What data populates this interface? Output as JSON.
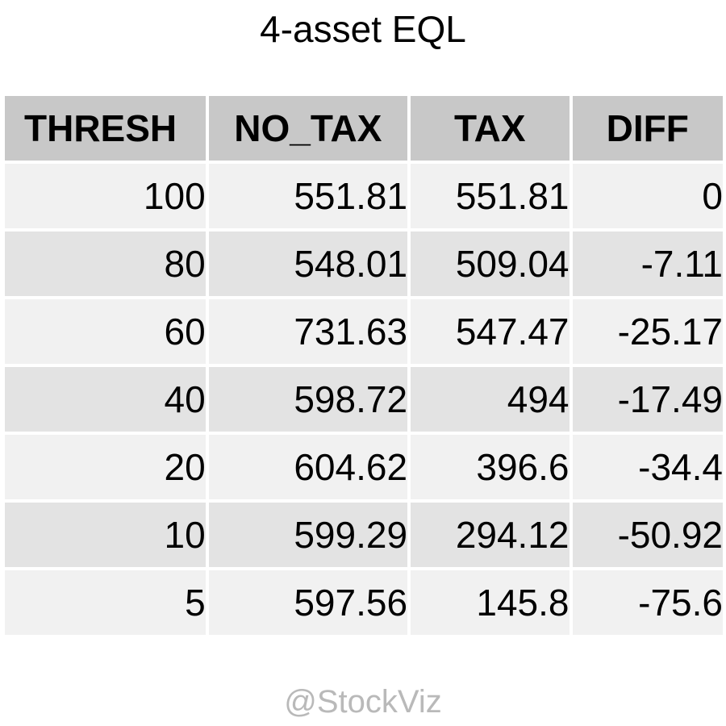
{
  "chart_data": {
    "type": "table",
    "title": "4-asset EQL",
    "columns": [
      "THRESH",
      "NO_TAX",
      "TAX",
      "DIFF"
    ],
    "rows": [
      [
        "100",
        "551.81",
        "551.81",
        "0"
      ],
      [
        "80",
        "548.01",
        "509.04",
        "-7.11"
      ],
      [
        "60",
        "731.63",
        "547.47",
        "-25.17"
      ],
      [
        "40",
        "598.72",
        "494",
        "-17.49"
      ],
      [
        "20",
        "604.62",
        "396.6",
        "-34.4"
      ],
      [
        "10",
        "599.29",
        "294.12",
        "-50.92"
      ],
      [
        "5",
        "597.56",
        "145.8",
        "-75.6"
      ]
    ],
    "colors": {
      "header_bg": "#c8c8c8",
      "row_light": "#f1f1f1",
      "row_dark": "#e3e3e3",
      "watermark": "#b9b9b9"
    }
  },
  "watermark": "@StockViz"
}
